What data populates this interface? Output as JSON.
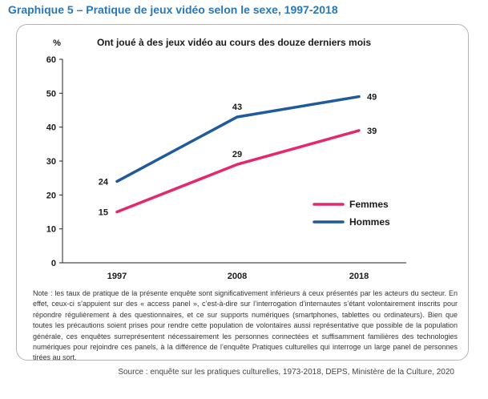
{
  "figure": {
    "title": "Graphique 5 – Pratique de jeux vidéo selon le sexe, 1997-2018",
    "title_color": "#2a77b7"
  },
  "chart_data": {
    "type": "line",
    "title": "Ont joué à des jeux vidéo au cours des douze derniers mois",
    "ylabel": "%",
    "xlabel": "",
    "x": [
      "1997",
      "2008",
      "2018"
    ],
    "ylim": [
      0,
      60
    ],
    "yticks": [
      0,
      10,
      20,
      30,
      40,
      50,
      60
    ],
    "grid": false,
    "legend": "right",
    "series": [
      {
        "name": "Femmes",
        "values": [
          15,
          29,
          39
        ],
        "color": "#e4286f"
      },
      {
        "name": "Hommes",
        "values": [
          24,
          43,
          49
        ],
        "color": "#1f5a9c"
      }
    ]
  },
  "note": "Note : les taux de pratique de la présente enquête sont significativement inférieurs à ceux présentés par les acteurs du secteur. En effet, ceux-ci s’appuient sur des « access panel », c’est-à-dire sur l’interrogation d’internautes s’étant volontairement inscrits pour répondre régulièrement à des questionnaires, et ce sur supports numériques (smartphones, tablettes ou ordinateurs). Bien que toutes les précautions soient prises pour rendre cette population de volontaires aussi représentative que possible de la population générale, ces enquêtes surreprésentent nécessairement les personnes connectées et suffisamment familières des technologies numériques pour rejoindre ces panels, à la différence de l’enquête Pratiques culturelles qui interroge un large panel de personnes tirées au sort.",
  "source": "Source : enquête sur les pratiques culturelles, 1973-2018, DEPS, Ministère de la Culture, 2020"
}
